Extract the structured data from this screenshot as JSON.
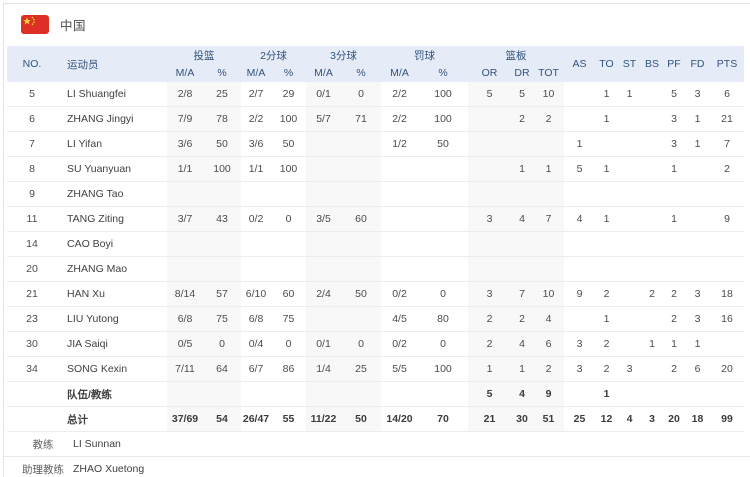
{
  "colors": {
    "header_bg": "#e6ecf7",
    "header_text": "#33527e",
    "flag_red": "#dd2f26",
    "flag_star_yellow": "#fbd937",
    "column_band": "#f8f8f8",
    "body_text": "#4c4c4c"
  },
  "team_header": {
    "name": "中国",
    "flag_icon": "china-flag"
  },
  "table": {
    "header": {
      "no": "NO.",
      "player": "运动员",
      "groups": [
        {
          "label": "投篮",
          "sub": [
            "M/A",
            "%"
          ]
        },
        {
          "label": "2分球",
          "sub": [
            "M/A",
            "%"
          ]
        },
        {
          "label": "3分球",
          "sub": [
            "M/A",
            "%"
          ]
        },
        {
          "label": "罚球",
          "sub": [
            "M/A",
            "%"
          ]
        },
        {
          "label": "篮板",
          "sub": [
            "OR",
            "DR",
            "TOT"
          ]
        }
      ],
      "stats": [
        "AS",
        "TO",
        "ST",
        "BS",
        "PF",
        "FD",
        "PTS"
      ]
    },
    "rows": [
      {
        "no": "5",
        "name": "LI Shuangfei",
        "fg_ma": "2/8",
        "fg_pct": "25",
        "p2_ma": "2/7",
        "p2_pct": "29",
        "p3_ma": "0/1",
        "p3_pct": "0",
        "ft_ma": "2/2",
        "ft_pct": "100",
        "or": "5",
        "dr": "5",
        "tot": "10",
        "as": "",
        "to": "1",
        "st": "1",
        "bs": "",
        "pf": "5",
        "fd": "3",
        "pts": "6"
      },
      {
        "no": "6",
        "name": "ZHANG Jingyi",
        "fg_ma": "7/9",
        "fg_pct": "78",
        "p2_ma": "2/2",
        "p2_pct": "100",
        "p3_ma": "5/7",
        "p3_pct": "71",
        "ft_ma": "2/2",
        "ft_pct": "100",
        "or": "",
        "dr": "2",
        "tot": "2",
        "as": "",
        "to": "1",
        "st": "",
        "bs": "",
        "pf": "3",
        "fd": "1",
        "pts": "21"
      },
      {
        "no": "7",
        "name": "LI Yifan",
        "fg_ma": "3/6",
        "fg_pct": "50",
        "p2_ma": "3/6",
        "p2_pct": "50",
        "p3_ma": "",
        "p3_pct": "",
        "ft_ma": "1/2",
        "ft_pct": "50",
        "or": "",
        "dr": "",
        "tot": "",
        "as": "1",
        "to": "",
        "st": "",
        "bs": "",
        "pf": "3",
        "fd": "1",
        "pts": "7"
      },
      {
        "no": "8",
        "name": "SU Yuanyuan",
        "fg_ma": "1/1",
        "fg_pct": "100",
        "p2_ma": "1/1",
        "p2_pct": "100",
        "p3_ma": "",
        "p3_pct": "",
        "ft_ma": "",
        "ft_pct": "",
        "or": "",
        "dr": "1",
        "tot": "1",
        "as": "5",
        "to": "1",
        "st": "",
        "bs": "",
        "pf": "1",
        "fd": "",
        "pts": "2"
      },
      {
        "no": "9",
        "name": "ZHANG Tao",
        "fg_ma": "",
        "fg_pct": "",
        "p2_ma": "",
        "p2_pct": "",
        "p3_ma": "",
        "p3_pct": "",
        "ft_ma": "",
        "ft_pct": "",
        "or": "",
        "dr": "",
        "tot": "",
        "as": "",
        "to": "",
        "st": "",
        "bs": "",
        "pf": "",
        "fd": "",
        "pts": ""
      },
      {
        "no": "11",
        "name": "TANG Ziting",
        "fg_ma": "3/7",
        "fg_pct": "43",
        "p2_ma": "0/2",
        "p2_pct": "0",
        "p3_ma": "3/5",
        "p3_pct": "60",
        "ft_ma": "",
        "ft_pct": "",
        "or": "3",
        "dr": "4",
        "tot": "7",
        "as": "4",
        "to": "1",
        "st": "",
        "bs": "",
        "pf": "1",
        "fd": "",
        "pts": "9"
      },
      {
        "no": "14",
        "name": "CAO Boyi",
        "fg_ma": "",
        "fg_pct": "",
        "p2_ma": "",
        "p2_pct": "",
        "p3_ma": "",
        "p3_pct": "",
        "ft_ma": "",
        "ft_pct": "",
        "or": "",
        "dr": "",
        "tot": "",
        "as": "",
        "to": "",
        "st": "",
        "bs": "",
        "pf": "",
        "fd": "",
        "pts": ""
      },
      {
        "no": "20",
        "name": "ZHANG Mao",
        "fg_ma": "",
        "fg_pct": "",
        "p2_ma": "",
        "p2_pct": "",
        "p3_ma": "",
        "p3_pct": "",
        "ft_ma": "",
        "ft_pct": "",
        "or": "",
        "dr": "",
        "tot": "",
        "as": "",
        "to": "",
        "st": "",
        "bs": "",
        "pf": "",
        "fd": "",
        "pts": ""
      },
      {
        "no": "21",
        "name": "HAN Xu",
        "fg_ma": "8/14",
        "fg_pct": "57",
        "p2_ma": "6/10",
        "p2_pct": "60",
        "p3_ma": "2/4",
        "p3_pct": "50",
        "ft_ma": "0/2",
        "ft_pct": "0",
        "or": "3",
        "dr": "7",
        "tot": "10",
        "as": "9",
        "to": "2",
        "st": "",
        "bs": "2",
        "pf": "2",
        "fd": "3",
        "pts": "18"
      },
      {
        "no": "23",
        "name": "LIU Yutong",
        "fg_ma": "6/8",
        "fg_pct": "75",
        "p2_ma": "6/8",
        "p2_pct": "75",
        "p3_ma": "",
        "p3_pct": "",
        "ft_ma": "4/5",
        "ft_pct": "80",
        "or": "2",
        "dr": "2",
        "tot": "4",
        "as": "",
        "to": "1",
        "st": "",
        "bs": "",
        "pf": "2",
        "fd": "3",
        "pts": "16"
      },
      {
        "no": "30",
        "name": "JIA Saiqi",
        "fg_ma": "0/5",
        "fg_pct": "0",
        "p2_ma": "0/4",
        "p2_pct": "0",
        "p3_ma": "0/1",
        "p3_pct": "0",
        "ft_ma": "0/2",
        "ft_pct": "0",
        "or": "2",
        "dr": "4",
        "tot": "6",
        "as": "3",
        "to": "2",
        "st": "",
        "bs": "1",
        "pf": "1",
        "fd": "1",
        "pts": ""
      },
      {
        "no": "34",
        "name": "SONG Kexin",
        "fg_ma": "7/11",
        "fg_pct": "64",
        "p2_ma": "6/7",
        "p2_pct": "86",
        "p3_ma": "1/4",
        "p3_pct": "25",
        "ft_ma": "5/5",
        "ft_pct": "100",
        "or": "1",
        "dr": "1",
        "tot": "2",
        "as": "3",
        "to": "2",
        "st": "3",
        "bs": "",
        "pf": "2",
        "fd": "6",
        "pts": "20"
      },
      {
        "no": "",
        "name": "队伍/教练",
        "type": "summary",
        "fg_ma": "",
        "fg_pct": "",
        "p2_ma": "",
        "p2_pct": "",
        "p3_ma": "",
        "p3_pct": "",
        "ft_ma": "",
        "ft_pct": "",
        "or": "5",
        "dr": "4",
        "tot": "9",
        "as": "",
        "to": "1",
        "st": "",
        "bs": "",
        "pf": "",
        "fd": "",
        "pts": ""
      },
      {
        "no": "",
        "name": "总计",
        "type": "summary",
        "fg_ma": "37/69",
        "fg_pct": "54",
        "p2_ma": "26/47",
        "p2_pct": "55",
        "p3_ma": "11/22",
        "p3_pct": "50",
        "ft_ma": "14/20",
        "ft_pct": "70",
        "or": "21",
        "dr": "30",
        "tot": "51",
        "as": "25",
        "to": "12",
        "st": "4",
        "bs": "3",
        "pf": "20",
        "fd": "18",
        "pts": "99"
      }
    ]
  },
  "coaches": [
    {
      "label": "教练",
      "name": "LI Sunnan"
    },
    {
      "label": "助理教练",
      "name": "ZHAO Xuetong"
    }
  ]
}
